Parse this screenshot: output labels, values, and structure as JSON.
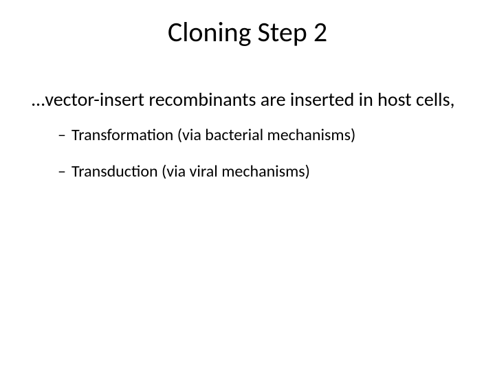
{
  "slide": {
    "title": "Cloning Step 2",
    "lead": "…vector-insert recombinants are inserted in host cells,",
    "bullets": [
      "Transformation (via bacterial mechanisms)",
      "Transduction (via viral mechanisms)"
    ],
    "styling": {
      "background_color": "#ffffff",
      "text_color": "#000000",
      "title_fontsize": 40,
      "lead_fontsize": 28,
      "bullet_fontsize": 24,
      "font_family": "Calibri",
      "dash_glyph": "–"
    }
  }
}
